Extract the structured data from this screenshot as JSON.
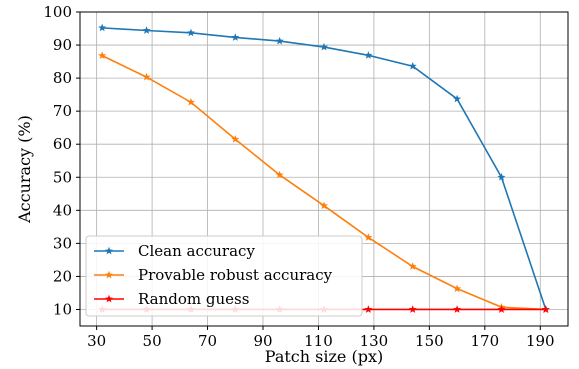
{
  "chart_data": {
    "type": "line",
    "title": "",
    "xlabel": "Patch size (px)",
    "ylabel": "Accuracy (%)",
    "xlim": [
      24,
      200
    ],
    "ylim": [
      5,
      100
    ],
    "xticks": [
      30,
      50,
      70,
      90,
      110,
      130,
      150,
      170,
      190
    ],
    "yticks": [
      10,
      20,
      30,
      40,
      50,
      60,
      70,
      80,
      90,
      100
    ],
    "grid": true,
    "legend_position": "bottom-left",
    "x": [
      32,
      48,
      64,
      80,
      96,
      112,
      128,
      144,
      160,
      176,
      192
    ],
    "series": [
      {
        "name": "Clean accuracy",
        "color": "#1f77b4",
        "marker": "star",
        "values": [
          95.2,
          94.4,
          93.7,
          92.3,
          91.2,
          89.4,
          86.9,
          83.6,
          73.7,
          50.0,
          10.0
        ]
      },
      {
        "name": "Provable robust accuracy",
        "color": "#ff7f0e",
        "marker": "star",
        "values": [
          86.8,
          80.3,
          72.7,
          61.5,
          50.7,
          41.4,
          31.8,
          23.0,
          16.3,
          10.7,
          10.0
        ]
      },
      {
        "name": "Random guess",
        "color": "#ff0000",
        "marker": "star",
        "values": [
          10,
          10,
          10,
          10,
          10,
          10,
          10,
          10,
          10,
          10,
          10
        ]
      }
    ]
  }
}
